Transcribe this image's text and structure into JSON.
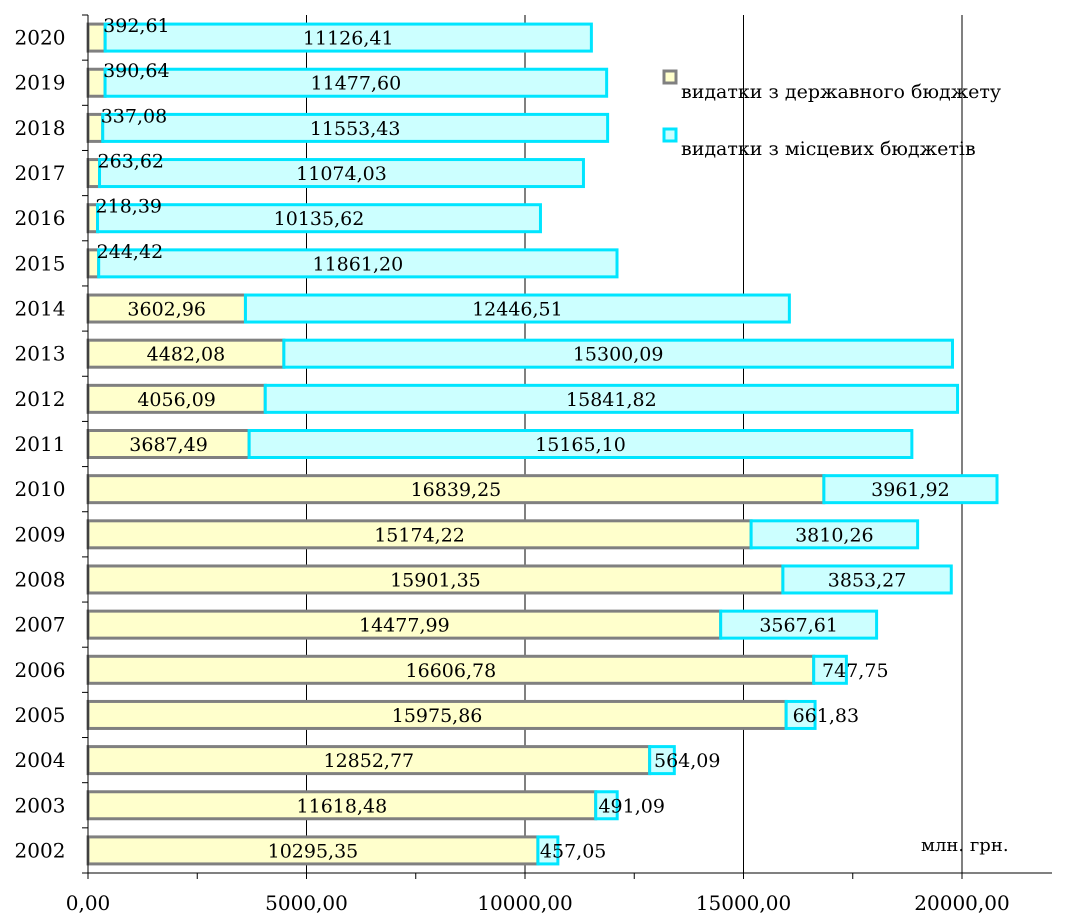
{
  "chart_data": {
    "type": "bar",
    "orientation": "horizontal",
    "stacked": true,
    "categories": [
      "2002",
      "2003",
      "2004",
      "2005",
      "2006",
      "2007",
      "2008",
      "2009",
      "2010",
      "2011",
      "2012",
      "2013",
      "2014",
      "2015",
      "2016",
      "2017",
      "2018",
      "2019",
      "2020"
    ],
    "series": [
      {
        "name": "видатки з державного бюджету",
        "color": "#ffffcc",
        "border": "#808080",
        "values": [
          10295.35,
          11618.48,
          12852.77,
          15975.86,
          16606.78,
          14477.99,
          15901.35,
          15174.22,
          16839.25,
          3687.49,
          4056.09,
          4482.08,
          3602.96,
          244.42,
          218.39,
          263.62,
          337.08,
          390.64,
          392.61
        ],
        "labels": [
          "10295,35",
          "11618,48",
          "12852,77",
          "15975,86",
          "16606,78",
          "14477,99",
          "15901,35",
          "15174,22",
          "16839,25",
          "3687,49",
          "4056,09",
          "4482,08",
          "3602,96",
          "244,42",
          "218,39",
          "263,62",
          "337,08",
          "390,64",
          "392,61"
        ]
      },
      {
        "name": "видатки з місцевих бюджетів",
        "color": "#ccffff",
        "border": "#00e5ff",
        "values": [
          457.05,
          491.09,
          564.09,
          661.83,
          747.75,
          3567.61,
          3853.27,
          3810.26,
          3961.92,
          15165.1,
          15841.82,
          15300.09,
          12446.51,
          11861.2,
          10135.62,
          11074.03,
          11553.43,
          11477.6,
          11126.41
        ],
        "labels": [
          "457,05",
          "491,09",
          "564,09",
          "661,83",
          "747,75",
          "3567,61",
          "3853,27",
          "3810,26",
          "3961,92",
          "15165,10",
          "15841,82",
          "15300,09",
          "12446,51",
          "11861,20",
          "10135,62",
          "11074,03",
          "11553,43",
          "11477,60",
          "11126,41"
        ]
      }
    ],
    "xlim": [
      0,
      20000
    ],
    "xticks": [
      0,
      5000,
      10000,
      15000,
      20000
    ],
    "xtick_labels": [
      "0,00",
      "5000,00",
      "10000,00",
      "15000,00",
      "20000,00"
    ],
    "unit_label": "млн. грн.",
    "grid": "vertical",
    "legend_position": "top-right"
  }
}
